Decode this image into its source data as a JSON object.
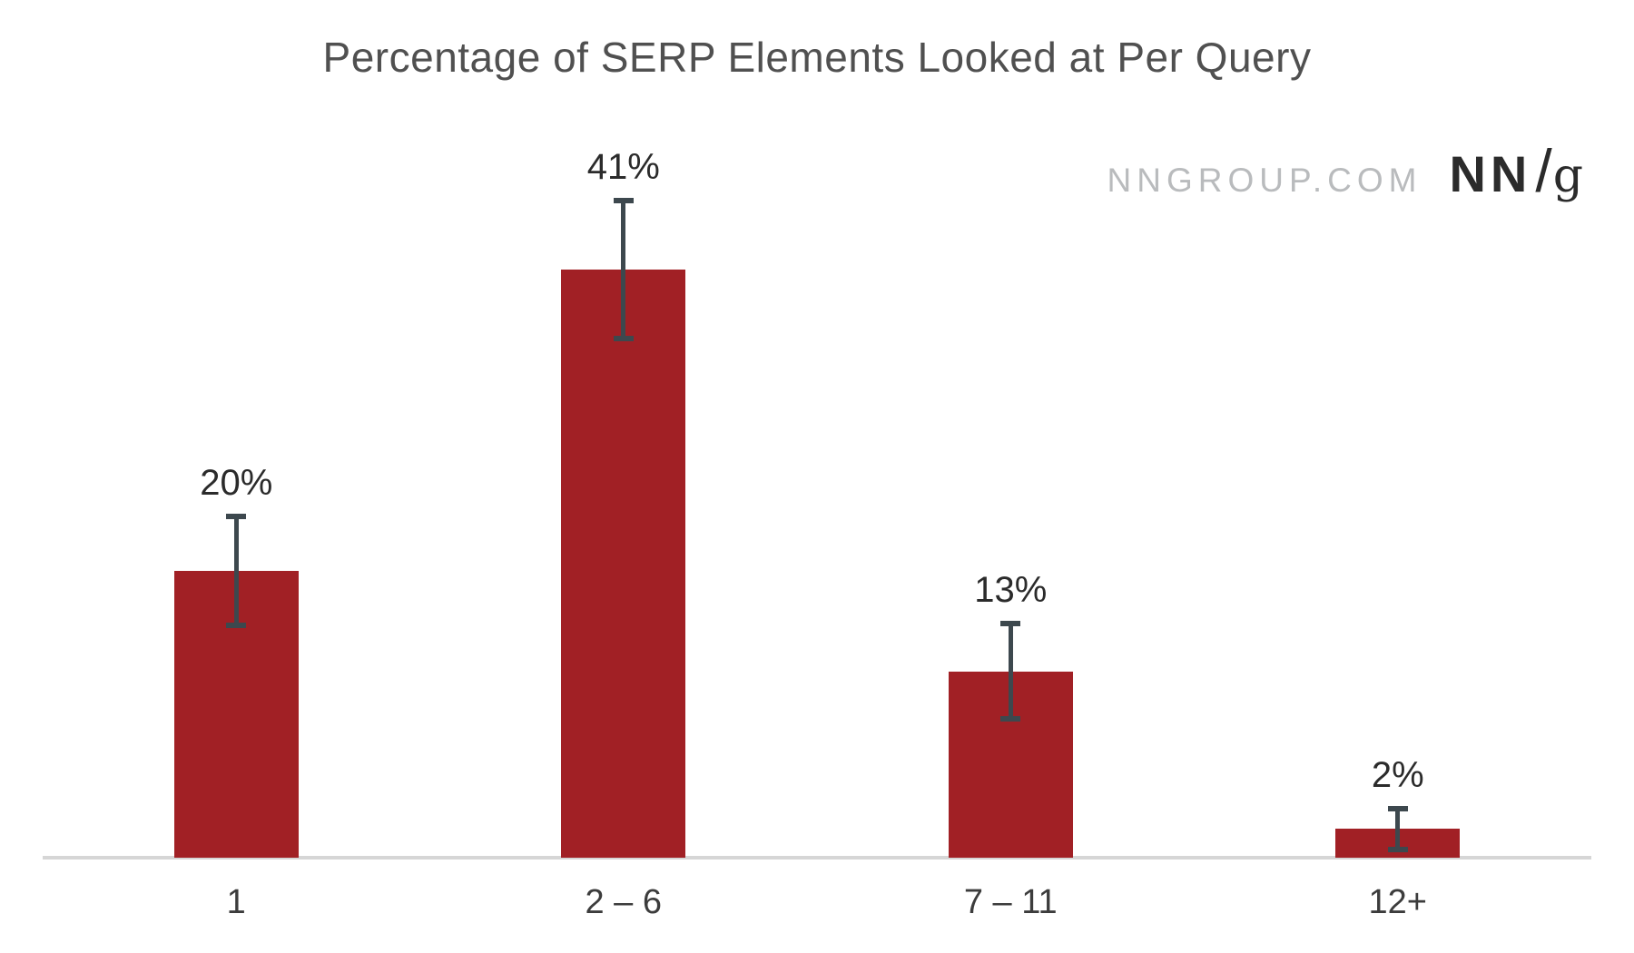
{
  "title": "Percentage of SERP Elements Looked at Per Query",
  "branding": {
    "site": "NNGROUP.COM",
    "logo_nn": "NN",
    "logo_slash": "/",
    "logo_g": "g"
  },
  "colors": {
    "bar": "#a12025",
    "error_bar": "#3d484e",
    "axis_line": "#d6d6d6",
    "title_text": "#505050",
    "value_label_text": "#2b2b2b",
    "category_text": "#3c3c3c",
    "brand_url_gray": "#b9bbbd",
    "logo_dark": "#2b2b2b",
    "background": "#ffffff"
  },
  "chart_data": {
    "type": "bar",
    "title": "Percentage of SERP Elements Looked at Per Query",
    "categories": [
      "1",
      "2 – 6",
      "7 – 11",
      "12+"
    ],
    "values": [
      20,
      41,
      13,
      2
    ],
    "value_labels": [
      "20%",
      "41%",
      "13%",
      "2%"
    ],
    "errors_plus": [
      4,
      5,
      3.5,
      1.6
    ],
    "errors_minus": [
      4,
      5,
      3.5,
      1.6
    ],
    "xlabel": "",
    "ylabel": "",
    "ylim": [
      0,
      50
    ],
    "grid": false,
    "legend": false,
    "error_bars": true,
    "data_labels_position": "above error bars",
    "bar_color": "#a12025",
    "error_bar_color": "#3d484e"
  }
}
